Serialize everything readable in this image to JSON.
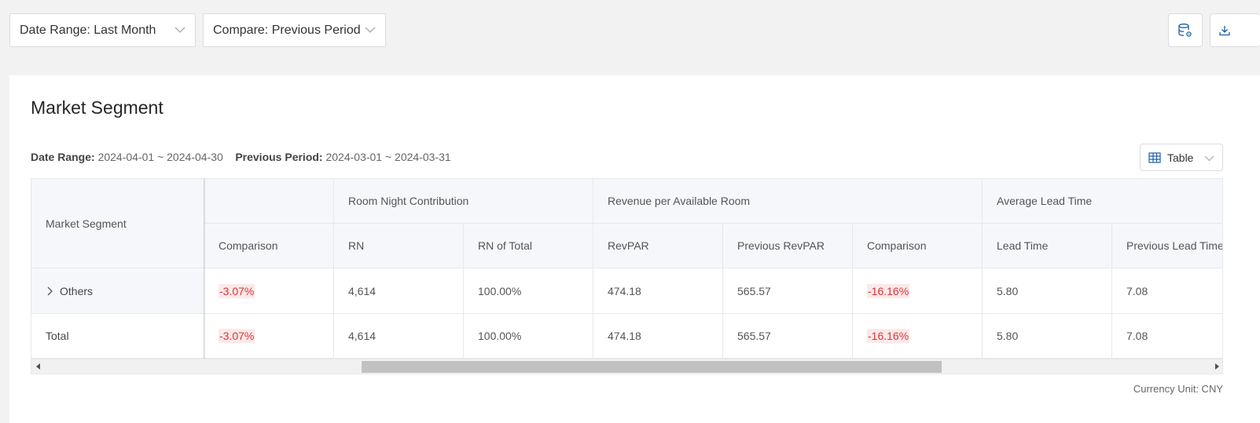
{
  "filters": {
    "date_range": "Date Range: Last Month",
    "compare": "Compare: Previous Period"
  },
  "toolbar": {
    "db_settings_icon": "database-settings-icon",
    "download_icon": "download-icon"
  },
  "card": {
    "title": "Market Segment",
    "date_range_label": "Date Range:",
    "date_range_value": "2024-04-01 ~ 2024-04-30",
    "previous_label": "Previous Period:",
    "previous_value": "2024-03-01 ~ 2024-03-31",
    "view_select": "Table"
  },
  "table": {
    "frozen_header": "Market Segment",
    "group_headers": {
      "room_night": "Room Night Contribution",
      "revpar": "Revenue per Available Room",
      "lead_time": "Average Lead Time"
    },
    "columns": {
      "comparison_prev": "Comparison",
      "rn": "RN",
      "rn_total": "RN of Total",
      "revpar": "RevPAR",
      "prev_revpar": "Previous RevPAR",
      "revpar_comparison": "Comparison",
      "lead_time": "Lead Time",
      "prev_lead_time": "Previous Lead Time"
    },
    "rows": [
      {
        "segment": "Others",
        "comparison_prev": "-3.07%",
        "rn": "4,614",
        "rn_total": "100.00%",
        "revpar": "474.18",
        "prev_revpar": "565.57",
        "revpar_comparison": "-16.16%",
        "lead_time": "5.80",
        "prev_lead_time": "7.08"
      },
      {
        "segment": "Total",
        "comparison_prev": "-3.07%",
        "rn": "4,614",
        "rn_total": "100.00%",
        "revpar": "474.18",
        "prev_revpar": "565.57",
        "revpar_comparison": "-16.16%",
        "lead_time": "5.80",
        "prev_lead_time": "7.08"
      }
    ]
  },
  "footer": {
    "currency": "Currency Unit: CNY"
  },
  "colors": {
    "negative_text": "#d9363e",
    "negative_bg": "#fde8e8",
    "header_bg": "#f5f7fa",
    "icon_blue": "#1f5fa8"
  }
}
